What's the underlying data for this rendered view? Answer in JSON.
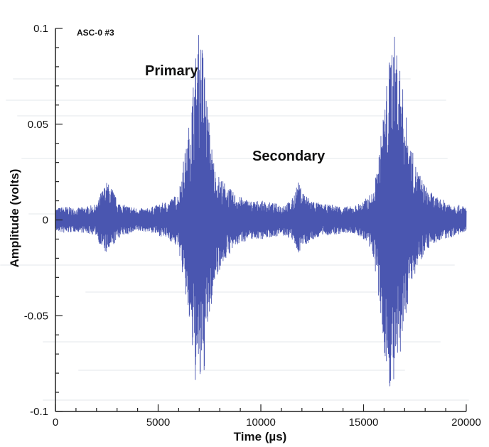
{
  "chart_data": {
    "type": "line",
    "title": "ASC-0 #3",
    "xlabel": "Time (µs)",
    "ylabel": "Amplitude (volts)",
    "xlim": [
      0,
      20000
    ],
    "ylim": [
      -0.1,
      0.1
    ],
    "x_ticks": [
      0,
      5000,
      10000,
      15000,
      20000
    ],
    "x_tick_labels": [
      "0",
      "5000",
      "10000",
      "15000",
      "20000"
    ],
    "y_ticks": [
      0.1,
      0.05,
      0,
      -0.05,
      -0.1
    ],
    "y_tick_labels": [
      "0.1",
      "0.05",
      "0",
      "-0.05",
      "-0.1"
    ],
    "grid": false,
    "annotations": [
      {
        "text": "Primary",
        "x": 6000,
        "y": 0.075
      },
      {
        "text": "Secondary",
        "x": 10000,
        "y": 0.03
      }
    ],
    "series": [
      {
        "color": "#4a56b0",
        "envelope": {
          "time": [
            0,
            500,
            1000,
            1500,
            2000,
            2200,
            2500,
            2800,
            3000,
            3300,
            3700,
            4000,
            4500,
            5000,
            5500,
            6000,
            6200,
            6400,
            6600,
            6800,
            7000,
            7200,
            7400,
            7600,
            7800,
            8200,
            8600,
            9000,
            9500,
            10000,
            10500,
            11000,
            11500,
            11800,
            12000,
            12300,
            12600,
            13000,
            13500,
            14000,
            14500,
            15000,
            15500,
            15800,
            16000,
            16200,
            16400,
            16600,
            16800,
            17000,
            17200,
            17500,
            18000,
            18500,
            19000,
            19500,
            20000
          ],
          "upper": [
            0.006,
            0.007,
            0.006,
            0.007,
            0.008,
            0.014,
            0.02,
            0.016,
            0.01,
            0.008,
            0.007,
            0.006,
            0.006,
            0.008,
            0.01,
            0.014,
            0.03,
            0.04,
            0.06,
            0.085,
            0.1,
            0.09,
            0.06,
            0.04,
            0.025,
            0.02,
            0.015,
            0.012,
            0.01,
            0.01,
            0.009,
            0.008,
            0.01,
            0.02,
            0.016,
            0.012,
            0.01,
            0.008,
            0.008,
            0.007,
            0.007,
            0.01,
            0.015,
            0.04,
            0.06,
            0.08,
            0.098,
            0.095,
            0.08,
            0.06,
            0.045,
            0.03,
            0.018,
            0.012,
            0.01,
            0.008,
            0.007
          ],
          "lower": [
            -0.006,
            -0.007,
            -0.006,
            -0.007,
            -0.008,
            -0.014,
            -0.018,
            -0.014,
            -0.01,
            -0.008,
            -0.007,
            -0.006,
            -0.006,
            -0.008,
            -0.01,
            -0.015,
            -0.03,
            -0.045,
            -0.065,
            -0.085,
            -0.09,
            -0.085,
            -0.06,
            -0.045,
            -0.03,
            -0.022,
            -0.016,
            -0.012,
            -0.01,
            -0.01,
            -0.009,
            -0.008,
            -0.01,
            -0.018,
            -0.014,
            -0.012,
            -0.01,
            -0.008,
            -0.008,
            -0.007,
            -0.007,
            -0.01,
            -0.02,
            -0.05,
            -0.07,
            -0.085,
            -0.09,
            -0.085,
            -0.075,
            -0.055,
            -0.04,
            -0.028,
            -0.016,
            -0.012,
            -0.01,
            -0.008,
            -0.007
          ]
        }
      }
    ]
  }
}
